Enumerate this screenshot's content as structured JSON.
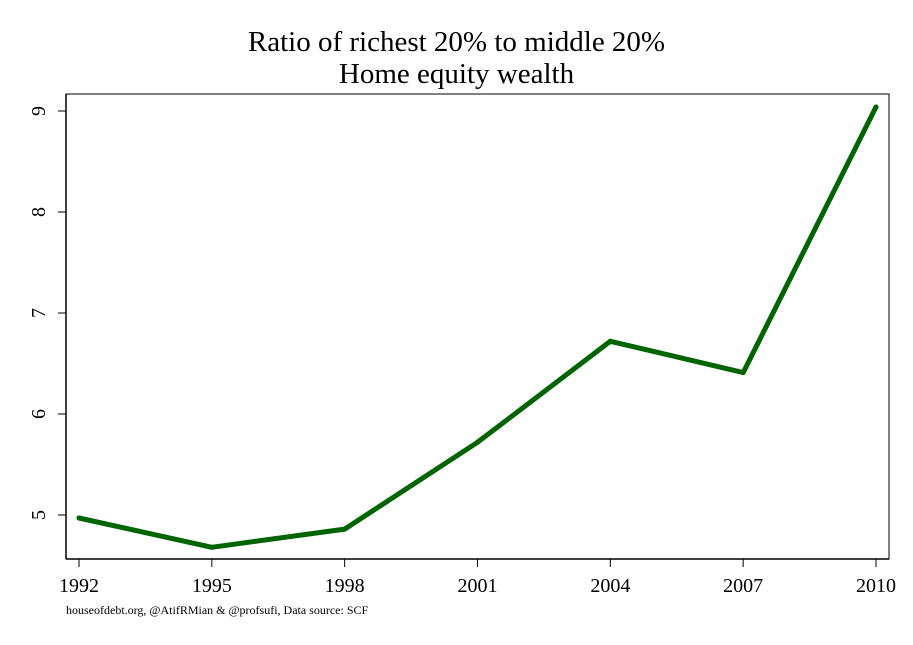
{
  "chart_data": {
    "type": "line",
    "title": "Ratio of richest 20% to middle 20%",
    "subtitle": "Home equity wealth",
    "xlabel": "",
    "ylabel": "",
    "x": [
      1992,
      1995,
      1998,
      2001,
      2004,
      2007,
      2010
    ],
    "series": [
      {
        "values": [
          4.97,
          4.68,
          4.86,
          5.72,
          6.72,
          6.41,
          9.04
        ]
      }
    ],
    "x_ticks": [
      "1992",
      "1995",
      "1998",
      "2001",
      "2004",
      "2007",
      "2010"
    ],
    "y_ticks": [
      "5",
      "6",
      "7",
      "8",
      "9"
    ],
    "xlim": [
      1992,
      2010
    ],
    "ylim": [
      4.55,
      9.17
    ],
    "grid": false,
    "legend": "none",
    "line_color": "#006400",
    "source_note": "houseofdebt.org, @AtifRMian & @profsufi, Data source: SCF"
  }
}
